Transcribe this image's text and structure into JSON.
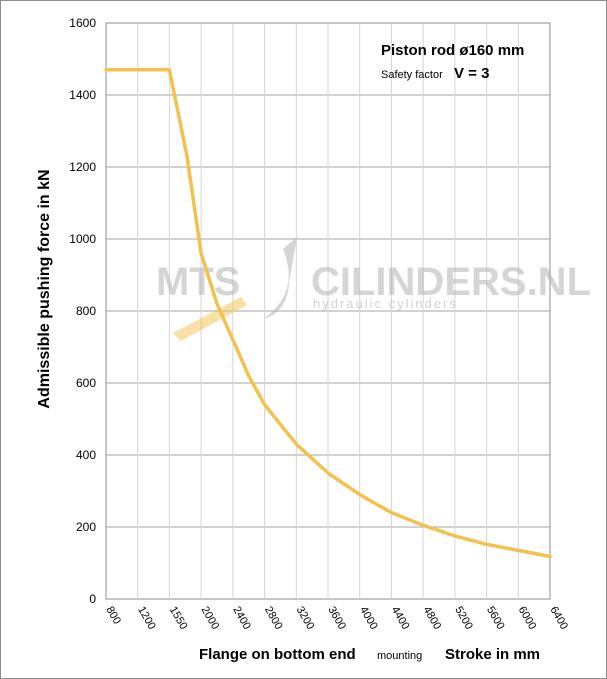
{
  "chart_data": {
    "type": "line",
    "ylabel": "Admissible pushing  force in kN",
    "ylim": [
      0,
      1600
    ],
    "yticks": [
      0,
      200,
      400,
      600,
      800,
      1000,
      1200,
      1400,
      1600
    ],
    "xticks": [
      800,
      1200,
      1550,
      2000,
      2400,
      2800,
      3200,
      3600,
      4000,
      4400,
      4800,
      5200,
      5600,
      6000,
      6400
    ],
    "xlabel_parts": {
      "main": "Flange on bottom end",
      "small": "mounting",
      "stroke": "Stroke in mm"
    },
    "annotations": {
      "piston_rod": "Piston rod ø160 mm",
      "safety_label": "Safety factor",
      "safety_value": "V = 3"
    },
    "grid": true,
    "series": [
      {
        "color": "#f2c14e",
        "x": [
          800,
          1200,
          1550,
          1800,
          2000,
          2200,
          2400,
          2600,
          2800,
          3200,
          3600,
          4000,
          4400,
          4800,
          5200,
          5600,
          6000,
          6400
        ],
        "y": [
          1470,
          1470,
          1470,
          1230,
          960,
          820,
          720,
          620,
          540,
          430,
          350,
          290,
          240,
          205,
          175,
          152,
          135,
          118
        ]
      }
    ],
    "watermark": {
      "left": "MTS",
      "right": "CILINDERS.NL",
      "sub": "hydraulic  cylinders"
    }
  }
}
